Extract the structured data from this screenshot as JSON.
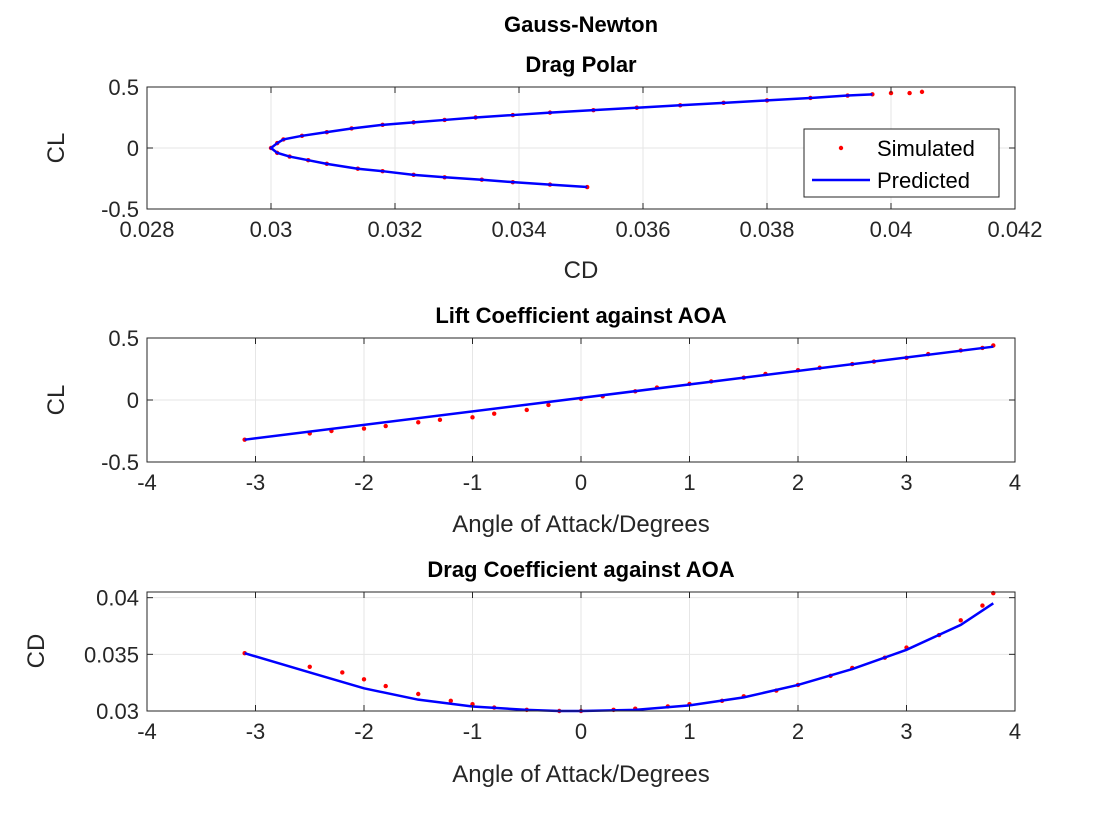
{
  "figure": {
    "title_line1": "Gauss-Newton"
  },
  "chart_data": [
    {
      "type": "scatter",
      "title": "Drag Polar",
      "xlabel": "CD",
      "ylabel": "CL",
      "xlim": [
        0.028,
        0.042
      ],
      "ylim": [
        -0.5,
        0.5
      ],
      "xticks": [
        0.028,
        0.03,
        0.032,
        0.034,
        0.036,
        0.038,
        0.04,
        0.042
      ],
      "xtick_labels": [
        "0.028",
        "0.03",
        "0.032",
        "0.034",
        "0.036",
        "0.038",
        "0.04",
        "0.042"
      ],
      "yticks": [
        -0.5,
        0,
        0.5
      ],
      "ytick_labels": [
        "-0.5",
        "0",
        "0.5"
      ],
      "grid": true,
      "legend": {
        "placement": "right",
        "entries": [
          "Simulated",
          "Predicted"
        ]
      },
      "series": [
        {
          "name": "Simulated",
          "kind": "points",
          "color": "#ff0000",
          "x": [
            0.0351,
            0.0345,
            0.0339,
            0.0334,
            0.0328,
            0.0323,
            0.0318,
            0.0314,
            0.0309,
            0.0306,
            0.0303,
            0.0301,
            0.03,
            0.0301,
            0.0302,
            0.0305,
            0.0309,
            0.0313,
            0.0318,
            0.0323,
            0.0328,
            0.0333,
            0.0339,
            0.0345,
            0.0352,
            0.0359,
            0.0366,
            0.0373,
            0.038,
            0.0387,
            0.0393,
            0.0397,
            0.04,
            0.0403,
            0.0405
          ],
          "y": [
            -0.32,
            -0.3,
            -0.28,
            -0.26,
            -0.24,
            -0.22,
            -0.19,
            -0.17,
            -0.13,
            -0.1,
            -0.07,
            -0.04,
            0.0,
            0.04,
            0.07,
            0.1,
            0.13,
            0.16,
            0.19,
            0.21,
            0.23,
            0.25,
            0.27,
            0.29,
            0.31,
            0.33,
            0.35,
            0.37,
            0.39,
            0.41,
            0.43,
            0.44,
            0.45,
            0.45,
            0.46
          ]
        },
        {
          "name": "Predicted",
          "kind": "line",
          "color": "#0000ff",
          "x": [
            0.0351,
            0.0345,
            0.0339,
            0.0334,
            0.0328,
            0.0323,
            0.0318,
            0.0314,
            0.0309,
            0.0306,
            0.0303,
            0.0301,
            0.03,
            0.0301,
            0.0302,
            0.0305,
            0.0309,
            0.0313,
            0.0318,
            0.0323,
            0.0328,
            0.0333,
            0.0339,
            0.0345,
            0.0352,
            0.0359,
            0.0366,
            0.0373,
            0.038,
            0.0387,
            0.0393,
            0.0397
          ],
          "y": [
            -0.32,
            -0.3,
            -0.28,
            -0.26,
            -0.24,
            -0.22,
            -0.19,
            -0.17,
            -0.13,
            -0.1,
            -0.07,
            -0.04,
            0.0,
            0.04,
            0.07,
            0.1,
            0.13,
            0.16,
            0.19,
            0.21,
            0.23,
            0.25,
            0.27,
            0.29,
            0.31,
            0.33,
            0.35,
            0.37,
            0.39,
            0.41,
            0.43,
            0.44
          ]
        }
      ]
    },
    {
      "type": "scatter",
      "title": "Lift Coefficient against AOA",
      "xlabel": "Angle of Attack/Degrees",
      "ylabel": "CL",
      "xlim": [
        -4,
        4
      ],
      "ylim": [
        -0.5,
        0.5
      ],
      "xticks": [
        -4,
        -3,
        -2,
        -1,
        0,
        1,
        2,
        3,
        4
      ],
      "xtick_labels": [
        "-4",
        "-3",
        "-2",
        "-1",
        "0",
        "1",
        "2",
        "3",
        "4"
      ],
      "yticks": [
        -0.5,
        0,
        0.5
      ],
      "ytick_labels": [
        "-0.5",
        "0",
        "0.5"
      ],
      "grid": true,
      "series": [
        {
          "name": "Simulated",
          "kind": "points",
          "color": "#ff0000",
          "x": [
            -3.1,
            -2.5,
            -2.3,
            -2.0,
            -1.8,
            -1.5,
            -1.3,
            -1.0,
            -0.8,
            -0.5,
            -0.3,
            0.0,
            0.2,
            0.5,
            0.7,
            1.0,
            1.2,
            1.5,
            1.7,
            2.0,
            2.2,
            2.5,
            2.7,
            3.0,
            3.2,
            3.5,
            3.7,
            3.8
          ],
          "y": [
            -0.32,
            -0.27,
            -0.25,
            -0.23,
            -0.21,
            -0.18,
            -0.16,
            -0.14,
            -0.11,
            -0.08,
            -0.04,
            0.01,
            0.03,
            0.07,
            0.1,
            0.13,
            0.15,
            0.18,
            0.21,
            0.24,
            0.26,
            0.29,
            0.31,
            0.34,
            0.37,
            0.4,
            0.42,
            0.44
          ]
        },
        {
          "name": "Predicted",
          "kind": "line",
          "color": "#0000ff",
          "x": [
            -3.1,
            3.8
          ],
          "y": [
            -0.32,
            0.43
          ]
        }
      ]
    },
    {
      "type": "scatter",
      "title": "Drag Coefficient against AOA",
      "xlabel": "Angle of Attack/Degrees",
      "ylabel": "CD",
      "xlim": [
        -4,
        4
      ],
      "ylim": [
        0.03,
        0.0405
      ],
      "xticks": [
        -4,
        -3,
        -2,
        -1,
        0,
        1,
        2,
        3,
        4
      ],
      "xtick_labels": [
        "-4",
        "-3",
        "-2",
        "-1",
        "0",
        "1",
        "2",
        "3",
        "4"
      ],
      "yticks": [
        0.03,
        0.035,
        0.04
      ],
      "ytick_labels": [
        "0.03",
        "0.035",
        "0.04"
      ],
      "grid": true,
      "series": [
        {
          "name": "Simulated",
          "kind": "points",
          "color": "#ff0000",
          "x": [
            -3.1,
            -2.5,
            -2.2,
            -2.0,
            -1.8,
            -1.5,
            -1.2,
            -1.0,
            -0.8,
            -0.5,
            -0.2,
            0.0,
            0.3,
            0.5,
            0.8,
            1.0,
            1.3,
            1.5,
            1.8,
            2.0,
            2.3,
            2.5,
            2.8,
            3.0,
            3.3,
            3.5,
            3.7,
            3.8
          ],
          "y": [
            0.0351,
            0.0339,
            0.0334,
            0.0328,
            0.0322,
            0.0315,
            0.0309,
            0.0306,
            0.0303,
            0.0301,
            0.03,
            0.03,
            0.0301,
            0.0302,
            0.0304,
            0.0306,
            0.0309,
            0.0313,
            0.0318,
            0.0323,
            0.0331,
            0.0338,
            0.0347,
            0.0356,
            0.0367,
            0.038,
            0.0393,
            0.0404
          ]
        },
        {
          "name": "Predicted",
          "kind": "line",
          "color": "#0000ff",
          "x": [
            -3.1,
            -2.5,
            -2.0,
            -1.5,
            -1.0,
            -0.5,
            -0.2,
            0.0,
            0.5,
            1.0,
            1.5,
            2.0,
            2.5,
            3.0,
            3.5,
            3.8
          ],
          "y": [
            0.0351,
            0.0334,
            0.032,
            0.031,
            0.0304,
            0.0301,
            0.03,
            0.03,
            0.0301,
            0.0305,
            0.0312,
            0.0323,
            0.0337,
            0.0354,
            0.0376,
            0.0395
          ]
        }
      ]
    }
  ]
}
